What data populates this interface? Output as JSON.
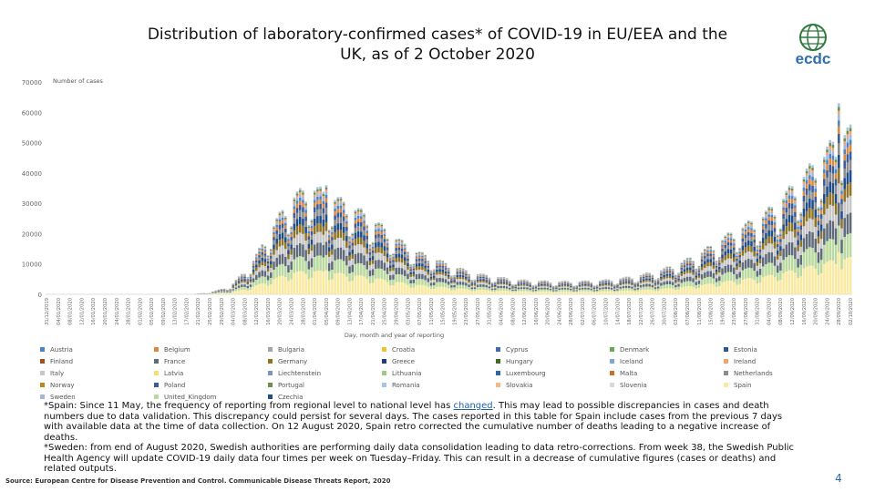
{
  "title_line1": "Distribution of laboratory-confirmed cases* of COVID-19 in EU/EEA and the",
  "title_line2": "UK, as of 2 October 2020",
  "logo_text": "ecdc",
  "chart_data": {
    "type": "bar",
    "stacked": true,
    "ylabel": "Number of cases",
    "xlabel": "Day, month and year of reporting",
    "ylim": [
      0,
      70000
    ],
    "yticks": [
      0,
      10000,
      20000,
      30000,
      40000,
      50000,
      60000,
      70000
    ],
    "x_start": "31/12/2019",
    "x_end": "02/10/2020",
    "x_tick_labels": [
      "31/12/2019",
      "04/01/2020",
      "08/01/2020",
      "12/01/2020",
      "16/01/2020",
      "20/01/2020",
      "24/01/2020",
      "28/01/2020",
      "01/02/2020",
      "05/02/2020",
      "09/02/2020",
      "13/02/2020",
      "17/02/2020",
      "21/02/2020",
      "25/02/2020",
      "29/02/2020",
      "04/03/2020",
      "08/03/2020",
      "12/03/2020",
      "16/03/2020",
      "20/03/2020",
      "24/03/2020",
      "28/03/2020",
      "01/04/2020",
      "05/04/2020",
      "09/04/2020",
      "13/04/2020",
      "17/04/2020",
      "21/04/2020",
      "25/04/2020",
      "29/04/2020",
      "03/05/2020",
      "07/05/2020",
      "11/05/2020",
      "15/05/2020",
      "19/05/2020",
      "23/05/2020",
      "27/05/2020",
      "31/05/2020",
      "04/06/2020",
      "08/06/2020",
      "12/06/2020",
      "16/06/2020",
      "20/06/2020",
      "24/06/2020",
      "28/06/2020",
      "02/07/2020",
      "06/07/2020",
      "10/07/2020",
      "14/07/2020",
      "18/07/2020",
      "22/07/2020",
      "26/07/2020",
      "30/07/2020",
      "03/08/2020",
      "07/08/2020",
      "11/08/2020",
      "15/08/2020",
      "19/08/2020",
      "23/08/2020",
      "27/08/2020",
      "31/08/2020",
      "04/09/2020",
      "08/09/2020",
      "12/09/2020",
      "16/09/2020",
      "20/09/2020",
      "24/09/2020",
      "28/09/2020",
      "02/10/2020"
    ],
    "daily_totals_weekly": [
      {
        "week_start": "31/12/2019",
        "total": 0
      },
      {
        "week_start": "07/01/2020",
        "total": 0
      },
      {
        "week_start": "14/01/2020",
        "total": 0
      },
      {
        "week_start": "21/01/2020",
        "total": 5
      },
      {
        "week_start": "28/01/2020",
        "total": 10
      },
      {
        "week_start": "04/02/2020",
        "total": 10
      },
      {
        "week_start": "11/02/2020",
        "total": 5
      },
      {
        "week_start": "18/02/2020",
        "total": 30
      },
      {
        "week_start": "25/02/2020",
        "total": 600
      },
      {
        "week_start": "03/03/2020",
        "total": 2500
      },
      {
        "week_start": "10/03/2020",
        "total": 9000
      },
      {
        "week_start": "17/03/2020",
        "total": 20000
      },
      {
        "week_start": "24/03/2020",
        "total": 30000
      },
      {
        "week_start": "31/03/2020",
        "total": 33000
      },
      {
        "week_start": "07/04/2020",
        "total": 30000
      },
      {
        "week_start": "14/04/2020",
        "total": 27000
      },
      {
        "week_start": "21/04/2020",
        "total": 23000
      },
      {
        "week_start": "28/04/2020",
        "total": 18000
      },
      {
        "week_start": "05/05/2020",
        "total": 13500
      },
      {
        "week_start": "12/05/2020",
        "total": 11000
      },
      {
        "week_start": "19/05/2020",
        "total": 8500
      },
      {
        "week_start": "26/05/2020",
        "total": 6500
      },
      {
        "week_start": "02/06/2020",
        "total": 5500
      },
      {
        "week_start": "09/06/2020",
        "total": 4500
      },
      {
        "week_start": "16/06/2020",
        "total": 4200
      },
      {
        "week_start": "23/06/2020",
        "total": 4000
      },
      {
        "week_start": "30/06/2020",
        "total": 4000
      },
      {
        "week_start": "07/07/2020",
        "total": 4200
      },
      {
        "week_start": "14/07/2020",
        "total": 4800
      },
      {
        "week_start": "21/07/2020",
        "total": 5800
      },
      {
        "week_start": "28/07/2020",
        "total": 7200
      },
      {
        "week_start": "04/08/2020",
        "total": 9500
      },
      {
        "week_start": "11/08/2020",
        "total": 12500
      },
      {
        "week_start": "18/08/2020",
        "total": 16500
      },
      {
        "week_start": "25/08/2020",
        "total": 20500
      },
      {
        "week_start": "01/09/2020",
        "total": 23500
      },
      {
        "week_start": "08/09/2020",
        "total": 29000
      },
      {
        "week_start": "15/09/2020",
        "total": 36000
      },
      {
        "week_start": "22/09/2020",
        "total": 42000
      },
      {
        "week_start": "29/09/2020",
        "total": 50000
      }
    ],
    "peaks": [
      {
        "date": "early April 2020",
        "value": 36000
      },
      {
        "date": "28/09/2020",
        "value": 63000
      }
    ],
    "legend": [
      {
        "name": "Austria",
        "color": "#4a86c5"
      },
      {
        "name": "Belgium",
        "color": "#e0873a"
      },
      {
        "name": "Bulgaria",
        "color": "#a5a5a5"
      },
      {
        "name": "Croatia",
        "color": "#f2c232"
      },
      {
        "name": "Cyprus",
        "color": "#3f6db0"
      },
      {
        "name": "Denmark",
        "color": "#6aa84f"
      },
      {
        "name": "Estonia",
        "color": "#2f5597"
      },
      {
        "name": "Finland",
        "color": "#a0521e"
      },
      {
        "name": "France",
        "color": "#5f6b7a"
      },
      {
        "name": "Germany",
        "color": "#8e7424"
      },
      {
        "name": "Greece",
        "color": "#1f3f70"
      },
      {
        "name": "Hungary",
        "color": "#3d6b2b"
      },
      {
        "name": "Iceland",
        "color": "#7fa7d6"
      },
      {
        "name": "Ireland",
        "color": "#f0a46a"
      },
      {
        "name": "Italy",
        "color": "#c7c7c7"
      },
      {
        "name": "Latvia",
        "color": "#f7dd72"
      },
      {
        "name": "Liechtenstein",
        "color": "#7a96c8"
      },
      {
        "name": "Lithuania",
        "color": "#9ccb82"
      },
      {
        "name": "Luxembourg",
        "color": "#2f63b0"
      },
      {
        "name": "Malta",
        "color": "#c9702e"
      },
      {
        "name": "Netherlands",
        "color": "#8c8c8c"
      },
      {
        "name": "Norway",
        "color": "#b58a1a"
      },
      {
        "name": "Poland",
        "color": "#3a5c9a"
      },
      {
        "name": "Portugal",
        "color": "#6e8f4a"
      },
      {
        "name": "Romania",
        "color": "#a9c3e6"
      },
      {
        "name": "Slovakia",
        "color": "#f3b98d"
      },
      {
        "name": "Slovenia",
        "color": "#d9d9d9"
      },
      {
        "name": "Spain",
        "color": "#fae9a0"
      },
      {
        "name": "Sweden",
        "color": "#a3b6dd"
      },
      {
        "name": "United_Kingdom",
        "color": "#b9d99e"
      },
      {
        "name": "Czechia",
        "color": "#1e4d8c"
      }
    ]
  },
  "notes": {
    "spain_before_link": "*Spain: Since 11 May, the frequency of reporting from regional level to national level has ",
    "spain_link": "changed",
    "spain_after_link": ". This may lead to possible discrepancies in cases and death numbers due to data validation. This discrepancy could persist for several days. The cases reported in this table for Spain include cases from the previous 7 days with available data at the time of data collection. On 12 August 2020, Spain retro corrected the cumulative number of deaths leading to a negative increase of deaths.",
    "sweden": "*Sweden: from end of August 2020, Swedish authorities are performing daily data consolidation leading to data retro-corrections. From week 38, the Swedish Public Health Agency will update COVID-19 daily data four times per week on Tuesday–Friday. This can result in a decrease of cumulative figures (cases or deaths) and related outputs."
  },
  "source": "Source: European Centre for Disease Prevention and Control. Communicable Disease Threats Report, 2020",
  "page_number": "4"
}
